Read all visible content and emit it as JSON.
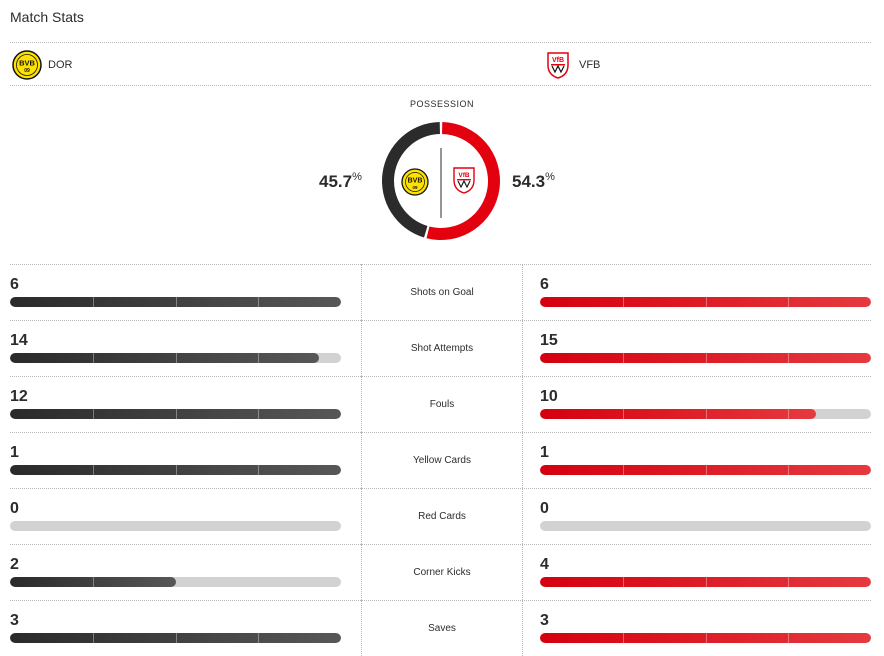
{
  "header": {
    "title": "Match Stats"
  },
  "teams": {
    "home": {
      "abbr": "DOR",
      "logo_text": "BVB 09",
      "color": "#2b2b2b",
      "badge_color": "#fde100"
    },
    "away": {
      "abbr": "VFB",
      "logo_text": "VfB",
      "color": "#e3000f"
    }
  },
  "possession": {
    "label": "POSSESSION",
    "home_value": "45.7",
    "away_value": "54.3",
    "unit": "%",
    "home_fraction": 0.457,
    "away_fraction": 0.543
  },
  "stats": [
    {
      "label": "Shots on Goal",
      "home": "6",
      "away": "6",
      "home_fill": 1.0,
      "away_fill": 1.0
    },
    {
      "label": "Shot Attempts",
      "home": "14",
      "away": "15",
      "home_fill": 0.933,
      "away_fill": 1.0
    },
    {
      "label": "Fouls",
      "home": "12",
      "away": "10",
      "home_fill": 1.0,
      "away_fill": 0.833
    },
    {
      "label": "Yellow Cards",
      "home": "1",
      "away": "1",
      "home_fill": 1.0,
      "away_fill": 1.0
    },
    {
      "label": "Red Cards",
      "home": "0",
      "away": "0",
      "home_fill": 0.0,
      "away_fill": 0.0
    },
    {
      "label": "Corner Kicks",
      "home": "2",
      "away": "4",
      "home_fill": 0.5,
      "away_fill": 1.0
    },
    {
      "label": "Saves",
      "home": "3",
      "away": "3",
      "home_fill": 1.0,
      "away_fill": 1.0
    }
  ]
}
